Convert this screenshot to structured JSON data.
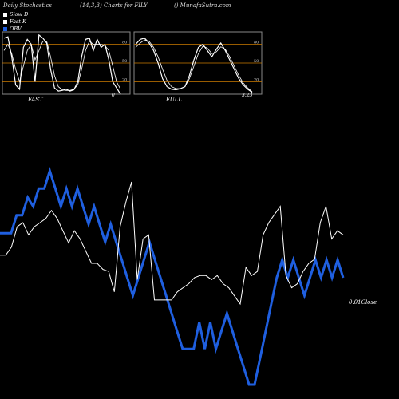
{
  "header": {
    "left": "Daily Stochastics",
    "middle": "(14,3,3) Charts for FILY",
    "right": "() MunafaSutra.com"
  },
  "legend": [
    {
      "label": "Slow  D",
      "color": "#ffffff"
    },
    {
      "label": "Fast K",
      "color": "#ffffff"
    },
    {
      "label": "OBV",
      "color": "#1f5fe0"
    }
  ],
  "colors": {
    "obv": "#1f5fe0",
    "price": "#ffffff",
    "grid": "#cc7a00",
    "bg": "#000000"
  },
  "chart_data": [
    {
      "type": "line",
      "title": "FAST",
      "value_label": "0",
      "ylim": [
        0,
        100
      ],
      "y_ticks": [
        20,
        50,
        80
      ],
      "series": [
        {
          "values": [
            90,
            92,
            60,
            15,
            8,
            75,
            88,
            80,
            20,
            95,
            90,
            82,
            40,
            10,
            5,
            6,
            8,
            5,
            7,
            20,
            60,
            88,
            90,
            70,
            88,
            75,
            80,
            55,
            20,
            10,
            0
          ]
        },
        {
          "values": [
            70,
            80,
            65,
            40,
            20,
            45,
            70,
            80,
            55,
            70,
            85,
            85,
            60,
            30,
            12,
            7,
            6,
            6,
            8,
            15,
            40,
            70,
            85,
            80,
            80,
            80,
            78,
            70,
            45,
            20,
            8
          ]
        }
      ]
    },
    {
      "type": "line",
      "title": "FULL",
      "value_label": "3.23",
      "ylim": [
        0,
        100
      ],
      "y_ticks": [
        20,
        50,
        80
      ],
      "series": [
        {
          "values": [
            80,
            88,
            90,
            82,
            70,
            50,
            25,
            12,
            8,
            7,
            9,
            12,
            30,
            55,
            75,
            80,
            70,
            60,
            72,
            82,
            70,
            55,
            40,
            25,
            15,
            8,
            3
          ]
        },
        {
          "values": [
            75,
            82,
            87,
            85,
            75,
            60,
            40,
            22,
            12,
            9,
            9,
            12,
            25,
            45,
            65,
            77,
            74,
            65,
            68,
            76,
            72,
            60,
            45,
            30,
            18,
            10,
            4
          ]
        }
      ]
    },
    {
      "type": "line",
      "title": "",
      "end_label": "0.01Close",
      "series": [
        {
          "values": [
            1.0,
            1.0,
            1.2,
            1.7,
            1.8,
            1.5,
            1.7,
            1.8,
            1.9,
            2.1,
            1.9,
            1.6,
            1.3,
            1.6,
            1.4,
            1.1,
            0.8,
            0.8,
            0.65,
            0.6,
            0.1,
            1.7,
            2.3,
            2.8,
            0.4,
            1.4,
            1.5,
            -0.1,
            -0.1,
            -0.1,
            -0.1,
            0.1,
            0.2,
            0.3,
            0.45,
            0.5,
            0.5,
            0.4,
            0.5,
            0.3,
            0.2,
            0.0,
            -0.2,
            0.7,
            0.5,
            0.6,
            1.5,
            1.8,
            2.0,
            2.2,
            0.5,
            0.2,
            0.3,
            0.6,
            0.8,
            0.9,
            1.8,
            2.2,
            1.4,
            1.6,
            1.5
          ]
        },
        {
          "values": [
            7.5,
            7.5,
            7.5,
            9.5,
            9.5,
            11.5,
            10.5,
            12.5,
            12.5,
            14.5,
            12.5,
            10.5,
            12.5,
            10.5,
            12.5,
            10.5,
            8.5,
            10.5,
            8.5,
            6.5,
            8.5,
            6.5,
            4.5,
            2.5,
            0.5,
            2.5,
            4.5,
            6.5,
            4.5,
            2.5,
            0.5,
            -1.5,
            -3.5,
            -5.5,
            -5.5,
            -5.5,
            -2.5,
            -5.5,
            -2.5,
            -5.5,
            -3.5,
            -1.5,
            -3.5,
            -5.5,
            -7.5,
            -9.5,
            -9.5,
            -6.5,
            -3.5,
            -0.5,
            2.5,
            4.5,
            2.5,
            4.5,
            2.5,
            0.5,
            2.5,
            4.5,
            2.5,
            4.5,
            2.5,
            4.5,
            2.5
          ]
        }
      ]
    }
  ]
}
